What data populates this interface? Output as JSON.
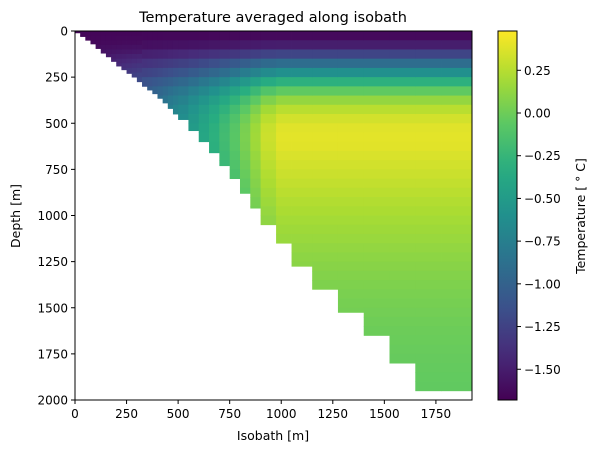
{
  "chart_data": {
    "type": "heatmap",
    "title": "Temperature averaged along isobath",
    "xlabel": "Isobath [m]",
    "ylabel": "Depth [m]",
    "colorbar_label": "Temperature [$^\\circ$C]",
    "colorbar_label_display": "Temperature [ ° C]",
    "colormap": "viridis",
    "xlim": [
      0,
      1925
    ],
    "ylim": [
      2000,
      0
    ],
    "clim": [
      -1.68,
      0.48
    ],
    "x_ticks": [
      0,
      250,
      500,
      750,
      1000,
      1250,
      1500,
      1750
    ],
    "y_ticks": [
      0,
      250,
      500,
      750,
      1000,
      1250,
      1500,
      1750,
      2000
    ],
    "colorbar_ticks": [
      0.25,
      0.0,
      -0.25,
      -0.5,
      -0.75,
      -1.0,
      -1.25,
      -1.5
    ],
    "columns": {
      "x_edges": [
        0,
        25,
        50,
        75,
        100,
        125,
        150,
        175,
        200,
        225,
        250,
        275,
        300,
        325,
        350,
        375,
        400,
        425,
        450,
        475,
        500,
        550,
        600,
        650,
        700,
        750,
        800,
        850,
        900,
        975,
        1050,
        1150,
        1275,
        1400,
        1525,
        1650,
        1775,
        1925
      ],
      "bottom_depth": [
        10,
        30,
        50,
        70,
        95,
        120,
        140,
        165,
        190,
        210,
        230,
        250,
        275,
        300,
        320,
        340,
        365,
        390,
        420,
        450,
        480,
        540,
        600,
        660,
        730,
        800,
        880,
        960,
        1050,
        1150,
        1275,
        1400,
        1525,
        1650,
        1800,
        1950,
        1950
      ]
    },
    "profile": {
      "depth_knots": [
        0,
        50,
        100,
        150,
        200,
        250,
        300,
        350,
        400,
        500,
        600,
        700,
        800,
        1000,
        1200,
        1400,
        1600,
        1800,
        2000
      ],
      "temperature_knots": [
        -1.65,
        -1.6,
        -1.4,
        -1.05,
        -0.75,
        -0.45,
        -0.15,
        0.05,
        0.22,
        0.38,
        0.4,
        0.35,
        0.3,
        0.2,
        0.12,
        0.05,
        0.0,
        -0.03,
        -0.05
      ]
    }
  }
}
